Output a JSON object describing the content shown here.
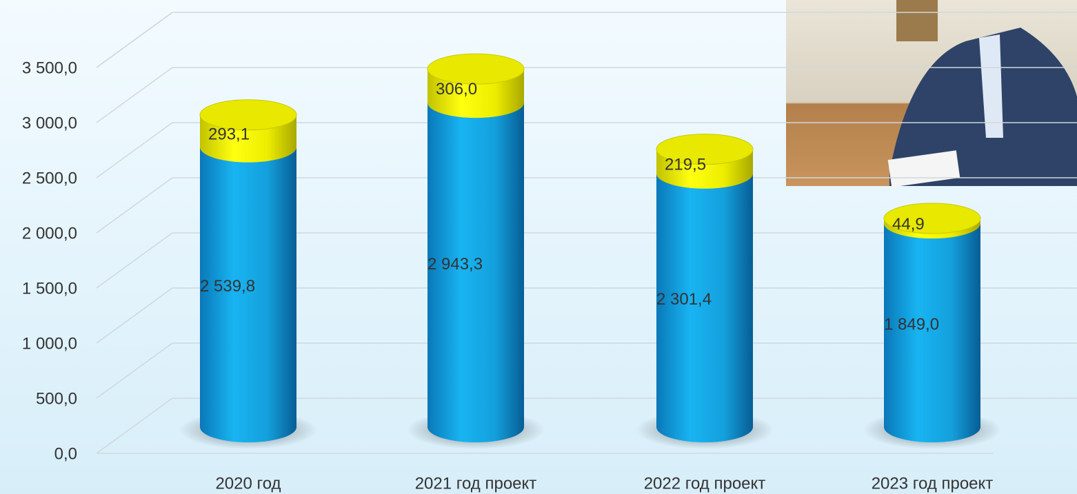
{
  "chart_data": {
    "type": "cylinder-stacked-bar",
    "categories": [
      "2020 год",
      "2021 год проект",
      "2022 год проект",
      "2023 год проект"
    ],
    "series": [
      {
        "color": "#14a6e6",
        "values": [
          2539.8,
          2943.3,
          2301.4,
          1849.0
        ],
        "value_labels": [
          "2 539,8",
          "2 943,3",
          "2 301,4",
          "1 849,0"
        ]
      },
      {
        "color": "#e8e800",
        "values": [
          293.1,
          306.0,
          219.5,
          44.9
        ],
        "value_labels": [
          "293,1",
          "306,0",
          "219,5",
          "44,9"
        ]
      }
    ],
    "ylim": [
      0,
      4000
    ],
    "yticks": [
      {
        "value": 0,
        "label": "0,0"
      },
      {
        "value": 500,
        "label": "500,0"
      },
      {
        "value": 1000,
        "label": "1 000,0"
      },
      {
        "value": 1500,
        "label": "1 500,0"
      },
      {
        "value": 2000,
        "label": "2 000,0"
      },
      {
        "value": 2500,
        "label": "2 500,0"
      },
      {
        "value": 3000,
        "label": "3 000,0"
      },
      {
        "value": 3500,
        "label": "3 500,0"
      }
    ],
    "grid": true
  }
}
